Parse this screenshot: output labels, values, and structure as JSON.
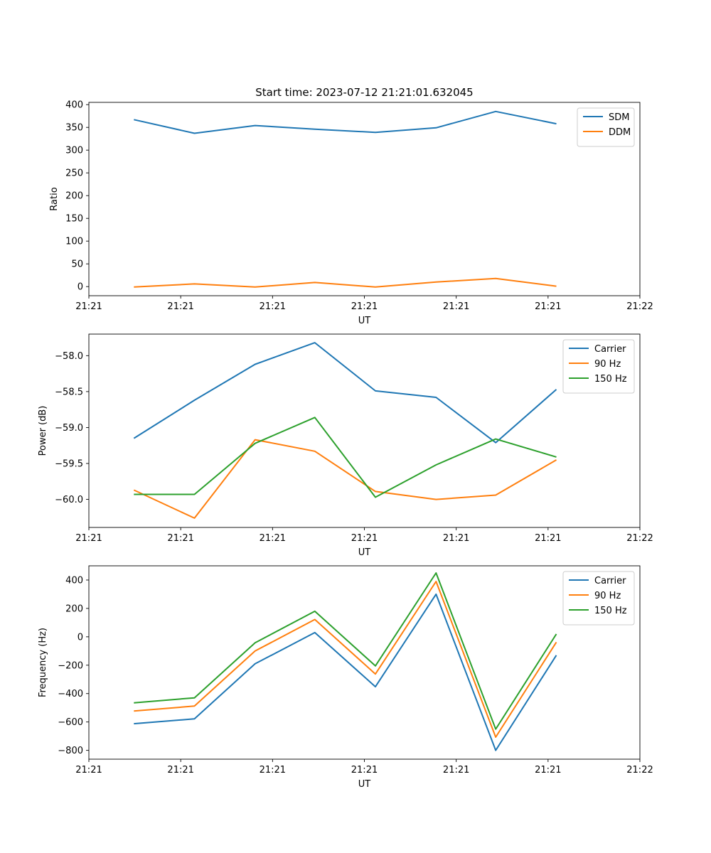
{
  "title": "Start time: 2023-07-12 21:21:01.632045",
  "colors": {
    "blue": "#1f77b4",
    "orange": "#ff7f0e",
    "green": "#2ca02c"
  },
  "chart_data": [
    {
      "type": "line",
      "title": "Start time: 2023-07-12 21:21:01.632045",
      "xlabel": "UT",
      "ylabel": "Ratio",
      "x_tick_labels": [
        "21:21",
        "21:21",
        "21:21",
        "21:21",
        "21:21",
        "21:21",
        "21:22"
      ],
      "xlim": [
        0,
        6
      ],
      "ylim": [
        -20,
        405
      ],
      "yticks": [
        0,
        50,
        100,
        150,
        200,
        250,
        300,
        350,
        400
      ],
      "x": [
        0.49,
        1.15,
        1.81,
        2.46,
        3.12,
        3.78,
        4.43,
        5.09
      ],
      "legend_position": "top-right",
      "series": [
        {
          "name": "SDM",
          "color": "#1f77b4",
          "values": [
            367,
            337,
            354,
            346,
            339,
            349,
            385,
            358
          ]
        },
        {
          "name": "DDM",
          "color": "#ff7f0e",
          "values": [
            -1,
            6,
            -1,
            9,
            -1,
            10,
            18,
            1
          ]
        }
      ]
    },
    {
      "type": "line",
      "xlabel": "UT",
      "ylabel": "Power (dB)",
      "x_tick_labels": [
        "21:21",
        "21:21",
        "21:21",
        "21:21",
        "21:21",
        "21:21",
        "21:22"
      ],
      "xlim": [
        0,
        6
      ],
      "ylim": [
        -60.39,
        -57.7
      ],
      "yticks": [
        -60.0,
        -59.5,
        -59.0,
        -58.5,
        -58.0
      ],
      "ytick_labels": [
        "−60.0",
        "−59.5",
        "−59.0",
        "−58.5",
        "−58.0"
      ],
      "x": [
        0.49,
        1.15,
        1.81,
        2.46,
        3.12,
        3.78,
        4.43,
        5.09
      ],
      "legend_position": "top-right",
      "series": [
        {
          "name": "Carrier",
          "color": "#1f77b4",
          "values": [
            -59.15,
            -58.62,
            -58.12,
            -57.82,
            -58.49,
            -58.58,
            -59.21,
            -58.47
          ]
        },
        {
          "name": "90 Hz",
          "color": "#ff7f0e",
          "values": [
            -59.87,
            -60.26,
            -59.17,
            -59.33,
            -59.89,
            -60.0,
            -59.94,
            -59.45
          ]
        },
        {
          "name": "150 Hz",
          "color": "#2ca02c",
          "values": [
            -59.93,
            -59.93,
            -59.22,
            -58.86,
            -59.97,
            -59.52,
            -59.16,
            -59.41
          ]
        }
      ]
    },
    {
      "type": "line",
      "xlabel": "UT",
      "ylabel": "Frequency (Hz)",
      "x_tick_labels": [
        "21:21",
        "21:21",
        "21:21",
        "21:21",
        "21:21",
        "21:21",
        "21:22"
      ],
      "xlim": [
        0,
        6
      ],
      "ylim": [
        -862,
        500
      ],
      "yticks": [
        -800,
        -600,
        -400,
        -200,
        0,
        200,
        400
      ],
      "ytick_labels": [
        "−800",
        "−600",
        "−400",
        "−200",
        "0",
        "200",
        "400"
      ],
      "x": [
        0.49,
        1.15,
        1.81,
        2.46,
        3.12,
        3.78,
        4.43,
        5.09
      ],
      "legend_position": "top-right",
      "series": [
        {
          "name": "Carrier",
          "color": "#1f77b4",
          "values": [
            -612,
            -578,
            -190,
            30,
            -352,
            300,
            -800,
            -130
          ]
        },
        {
          "name": "90 Hz",
          "color": "#ff7f0e",
          "values": [
            -523,
            -488,
            -100,
            122,
            -262,
            390,
            -707,
            -38
          ]
        },
        {
          "name": "150 Hz",
          "color": "#2ca02c",
          "values": [
            -465,
            -430,
            -42,
            180,
            -205,
            450,
            -650,
            20
          ]
        }
      ]
    }
  ]
}
